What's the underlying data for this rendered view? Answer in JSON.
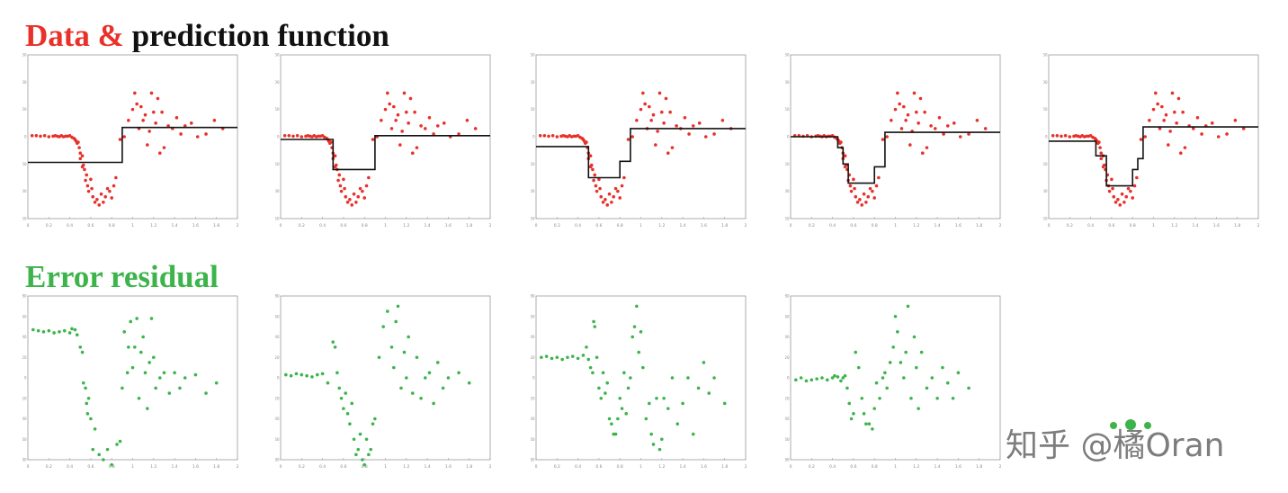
{
  "headings": {
    "top_colored": "Data &",
    "top_rest": " prediction function",
    "bottom": "Error residual"
  },
  "colors": {
    "red": "#e8312a",
    "green": "#3cb44b",
    "black": "#111111",
    "axis": "#9a9a9a",
    "tick_text": "#8a8a8a"
  },
  "watermark": "知乎 @橘Oran",
  "data_x": [
    0.04,
    0.08,
    0.12,
    0.16,
    0.2,
    0.24,
    0.26,
    0.28,
    0.3,
    0.32,
    0.34,
    0.36,
    0.38,
    0.4,
    0.42,
    0.44,
    0.45,
    0.46,
    0.47,
    0.48,
    0.49,
    0.5,
    0.5,
    0.52,
    0.52,
    0.53,
    0.54,
    0.55,
    0.56,
    0.57,
    0.58,
    0.6,
    0.61,
    0.62,
    0.64,
    0.66,
    0.68,
    0.7,
    0.72,
    0.74,
    0.76,
    0.78,
    0.8,
    0.82,
    0.84,
    0.88,
    0.92,
    0.96,
    1.0,
    1.02,
    1.04,
    1.06,
    1.08,
    1.1,
    1.12,
    1.14,
    1.16,
    1.18,
    1.2,
    1.22,
    1.24,
    1.26,
    1.28,
    1.3,
    1.34,
    1.38,
    1.42,
    1.46,
    1.5,
    1.56,
    1.62,
    1.7,
    1.78,
    1.86
  ],
  "data_y": [
    2,
    2,
    1,
    2,
    0,
    1,
    2,
    1,
    0,
    2,
    0,
    1,
    1,
    2,
    -1,
    -3,
    -5,
    -8,
    -12,
    -10,
    -20,
    -30,
    -40,
    -35,
    -55,
    -52,
    -60,
    -80,
    -70,
    -90,
    -100,
    -78,
    -95,
    -110,
    -120,
    -115,
    -125,
    -105,
    -120,
    -110,
    -95,
    -100,
    -112,
    -90,
    -75,
    -5,
    0,
    30,
    50,
    80,
    60,
    15,
    55,
    30,
    40,
    -15,
    10,
    80,
    45,
    25,
    70,
    -30,
    45,
    -20,
    20,
    15,
    35,
    5,
    20,
    25,
    0,
    5,
    30,
    15
  ],
  "charts": [
    {
      "id": "prediction-1",
      "kind": "prediction",
      "xlim": [
        0,
        2
      ],
      "ylim": [
        -150,
        150
      ],
      "xticks": [
        "0",
        "0.2",
        "0.4",
        "0.6",
        "0.8",
        "1",
        "1.2",
        "1.4",
        "1.6",
        "1.8",
        "2"
      ],
      "yticks": [
        "150",
        "100",
        "50",
        "0",
        "-50",
        "-100",
        "-150"
      ],
      "step_x": [
        0,
        0.9,
        0.9,
        2.0
      ],
      "step_y": [
        -47,
        -47,
        17,
        17
      ]
    },
    {
      "id": "prediction-2",
      "kind": "prediction",
      "xlim": [
        0,
        2
      ],
      "ylim": [
        -150,
        150
      ],
      "xticks": [
        "0",
        "0.2",
        "0.4",
        "0.6",
        "0.8",
        "1",
        "1.2",
        "1.4",
        "1.6",
        "1.8",
        "2"
      ],
      "yticks": [
        "150",
        "100",
        "50",
        "0",
        "-50",
        "-100",
        "-150"
      ],
      "step_x": [
        0,
        0.5,
        0.5,
        0.9,
        0.9,
        2.0
      ],
      "step_y": [
        -5,
        -5,
        -60,
        -60,
        2,
        2
      ]
    },
    {
      "id": "prediction-3",
      "kind": "prediction",
      "xlim": [
        0,
        2
      ],
      "ylim": [
        -150,
        150
      ],
      "xticks": [
        "0",
        "0.2",
        "0.4",
        "0.6",
        "0.8",
        "1",
        "1.2",
        "1.4",
        "1.6",
        "1.8",
        "2"
      ],
      "yticks": [
        "150",
        "100",
        "50",
        "0",
        "-50",
        "-100",
        "-150"
      ],
      "step_x": [
        0,
        0.5,
        0.5,
        0.8,
        0.8,
        0.9,
        0.9,
        2.0
      ],
      "step_y": [
        -18,
        -18,
        -75,
        -75,
        -45,
        -45,
        15,
        15
      ]
    },
    {
      "id": "prediction-4",
      "kind": "prediction",
      "xlim": [
        0,
        2
      ],
      "ylim": [
        -150,
        150
      ],
      "xticks": [
        "0",
        "0.2",
        "0.4",
        "0.6",
        "0.8",
        "1",
        "1.2",
        "1.4",
        "1.6",
        "1.8",
        "2"
      ],
      "yticks": [
        "150",
        "100",
        "50",
        "0",
        "-50",
        "-100",
        "-150"
      ],
      "step_x": [
        0,
        0.45,
        0.45,
        0.5,
        0.5,
        0.55,
        0.55,
        0.8,
        0.8,
        0.9,
        0.9,
        2.0
      ],
      "step_y": [
        0,
        0,
        -20,
        -20,
        -50,
        -50,
        -85,
        -85,
        -55,
        -55,
        8,
        8
      ]
    },
    {
      "id": "prediction-5",
      "kind": "prediction",
      "xlim": [
        0,
        2
      ],
      "ylim": [
        -150,
        150
      ],
      "xticks": [
        "0",
        "0.2",
        "0.4",
        "0.6",
        "0.8",
        "1",
        "1.2",
        "1.4",
        "1.6",
        "1.8",
        "2"
      ],
      "yticks": [
        "150",
        "100",
        "50",
        "0",
        "-50",
        "-100",
        "-150"
      ],
      "step_x": [
        0,
        0.45,
        0.45,
        0.55,
        0.55,
        0.8,
        0.8,
        0.85,
        0.85,
        0.9,
        0.9,
        2.0
      ],
      "step_y": [
        -8,
        -8,
        -35,
        -35,
        -90,
        -90,
        -60,
        -60,
        -40,
        -40,
        18,
        18
      ]
    },
    {
      "id": "residual-1",
      "kind": "residual",
      "xlim": [
        0,
        2
      ],
      "ylim": [
        -80,
        80
      ],
      "xticks": [
        "0",
        "0.2",
        "0.4",
        "0.6",
        "0.8",
        "1",
        "1.2",
        "1.4",
        "1.6",
        "1.8",
        "2"
      ],
      "yticks": [
        "80",
        "60",
        "40",
        "20",
        "0",
        "-20",
        "-40",
        "-60",
        "-80"
      ],
      "rx": [
        0.05,
        0.1,
        0.15,
        0.2,
        0.25,
        0.3,
        0.35,
        0.4,
        0.42,
        0.45,
        0.47,
        0.5,
        0.52,
        0.53,
        0.55,
        0.56,
        0.57,
        0.58,
        0.6,
        0.62,
        0.64,
        0.68,
        0.72,
        0.76,
        0.8,
        0.85,
        0.88,
        0.9,
        0.92,
        0.95,
        0.96,
        0.98,
        1.0,
        1.02,
        1.04,
        1.06,
        1.08,
        1.1,
        1.12,
        1.14,
        1.16,
        1.18,
        1.2,
        1.22,
        1.26,
        1.3,
        1.35,
        1.4,
        1.45,
        1.5,
        1.6,
        1.7,
        1.8
      ],
      "ry": [
        47,
        46,
        45,
        46,
        44,
        45,
        46,
        44,
        48,
        47,
        42,
        30,
        25,
        -5,
        -10,
        -25,
        -35,
        -20,
        -40,
        -70,
        -50,
        -75,
        -80,
        -70,
        -85,
        -65,
        -62,
        -10,
        45,
        5,
        30,
        55,
        10,
        30,
        58,
        -20,
        25,
        40,
        5,
        -30,
        15,
        58,
        20,
        -10,
        0,
        5,
        -15,
        5,
        -10,
        0,
        3,
        -15,
        -5
      ]
    },
    {
      "id": "residual-2",
      "kind": "residual",
      "xlim": [
        0,
        2
      ],
      "ylim": [
        -80,
        80
      ],
      "xticks": [
        "0",
        "0.2",
        "0.4",
        "0.6",
        "0.8",
        "1",
        "1.2",
        "1.4",
        "1.6",
        "1.8",
        "2"
      ],
      "yticks": [
        "80",
        "60",
        "40",
        "20",
        "0",
        "-20",
        "-40",
        "-60",
        "-80"
      ],
      "rx": [
        0.05,
        0.1,
        0.15,
        0.2,
        0.25,
        0.3,
        0.35,
        0.4,
        0.45,
        0.5,
        0.52,
        0.54,
        0.56,
        0.58,
        0.6,
        0.62,
        0.64,
        0.66,
        0.68,
        0.7,
        0.72,
        0.74,
        0.76,
        0.78,
        0.8,
        0.82,
        0.84,
        0.86,
        0.88,
        0.9,
        0.94,
        0.98,
        1.02,
        1.06,
        1.08,
        1.1,
        1.12,
        1.15,
        1.18,
        1.2,
        1.22,
        1.26,
        1.3,
        1.34,
        1.38,
        1.42,
        1.46,
        1.5,
        1.55,
        1.6,
        1.7,
        1.8
      ],
      "ry": [
        3,
        2,
        4,
        3,
        2,
        1,
        3,
        4,
        -5,
        35,
        30,
        5,
        -10,
        -20,
        -30,
        -15,
        -35,
        -45,
        -25,
        -60,
        -75,
        -70,
        -55,
        -80,
        -85,
        -60,
        -75,
        -70,
        -45,
        -40,
        20,
        50,
        65,
        30,
        10,
        55,
        70,
        -10,
        25,
        0,
        40,
        -15,
        20,
        -20,
        0,
        5,
        -25,
        15,
        -10,
        0,
        5,
        -5
      ]
    },
    {
      "id": "residual-3",
      "kind": "residual",
      "xlim": [
        0,
        2
      ],
      "ylim": [
        -80,
        80
      ],
      "xticks": [
        "0",
        "0.2",
        "0.4",
        "0.6",
        "0.8",
        "1",
        "1.2",
        "1.4",
        "1.6",
        "1.8",
        "2"
      ],
      "yticks": [
        "80",
        "60",
        "40",
        "20",
        "0",
        "-20",
        "-40",
        "-60",
        "-80"
      ],
      "rx": [
        0.05,
        0.1,
        0.15,
        0.2,
        0.25,
        0.3,
        0.35,
        0.4,
        0.45,
        0.48,
        0.5,
        0.52,
        0.54,
        0.55,
        0.56,
        0.58,
        0.6,
        0.62,
        0.64,
        0.66,
        0.68,
        0.7,
        0.72,
        0.74,
        0.76,
        0.78,
        0.8,
        0.82,
        0.84,
        0.86,
        0.88,
        0.9,
        0.92,
        0.94,
        0.96,
        0.98,
        1.0,
        1.02,
        1.05,
        1.08,
        1.1,
        1.12,
        1.15,
        1.18,
        1.2,
        1.22,
        1.26,
        1.3,
        1.35,
        1.4,
        1.45,
        1.5,
        1.55,
        1.6,
        1.65,
        1.7,
        1.8
      ],
      "ry": [
        20,
        21,
        19,
        20,
        18,
        20,
        21,
        19,
        22,
        30,
        18,
        10,
        5,
        55,
        50,
        20,
        -10,
        -20,
        5,
        -15,
        -5,
        -40,
        -45,
        -55,
        -55,
        -40,
        -20,
        -30,
        5,
        -35,
        -10,
        0,
        40,
        50,
        70,
        25,
        45,
        10,
        -40,
        -25,
        -55,
        -65,
        -20,
        -70,
        -60,
        -20,
        -30,
        0,
        -45,
        -25,
        0,
        -55,
        -10,
        15,
        -15,
        0,
        -25
      ]
    },
    {
      "id": "residual-4",
      "kind": "residual",
      "xlim": [
        0,
        2
      ],
      "ylim": [
        -80,
        80
      ],
      "xticks": [
        "0",
        "0.2",
        "0.4",
        "0.6",
        "0.8",
        "1",
        "1.2",
        "1.4",
        "1.6",
        "1.8",
        "2"
      ],
      "yticks": [
        "80",
        "60",
        "40",
        "20",
        "0",
        "-20",
        "-40",
        "-60",
        "-80"
      ],
      "rx": [
        0.05,
        0.1,
        0.15,
        0.2,
        0.25,
        0.3,
        0.35,
        0.4,
        0.42,
        0.45,
        0.48,
        0.5,
        0.52,
        0.54,
        0.56,
        0.58,
        0.6,
        0.62,
        0.65,
        0.68,
        0.7,
        0.72,
        0.75,
        0.78,
        0.8,
        0.82,
        0.85,
        0.88,
        0.9,
        0.92,
        0.95,
        0.98,
        1.0,
        1.02,
        1.05,
        1.08,
        1.1,
        1.12,
        1.15,
        1.18,
        1.2,
        1.22,
        1.25,
        1.3,
        1.35,
        1.4,
        1.45,
        1.5,
        1.55,
        1.6,
        1.7
      ],
      "ry": [
        -2,
        0,
        -3,
        -2,
        -1,
        0,
        -2,
        0,
        2,
        1,
        -3,
        0,
        2,
        -10,
        -25,
        -40,
        -35,
        25,
        10,
        -20,
        -35,
        -45,
        -45,
        -50,
        -30,
        -5,
        -20,
        0,
        5,
        -10,
        15,
        30,
        60,
        45,
        15,
        0,
        25,
        70,
        -20,
        40,
        10,
        -30,
        25,
        -10,
        0,
        -20,
        10,
        -5,
        -20,
        5,
        -10
      ]
    }
  ]
}
